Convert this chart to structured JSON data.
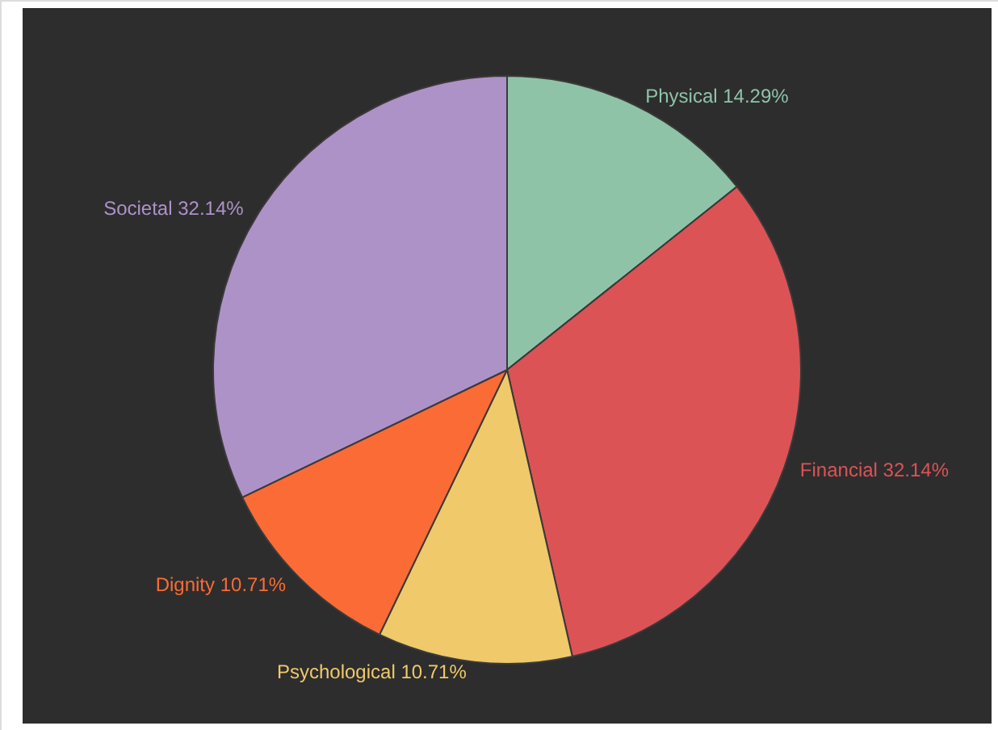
{
  "chart_data": {
    "type": "pie",
    "categories": [
      "Physical",
      "Financial",
      "Psychological",
      "Dignity",
      "Societal"
    ],
    "values": [
      14.29,
      32.14,
      10.71,
      10.71,
      32.14
    ],
    "colors": [
      "#8fc3a8",
      "#dc5356",
      "#efc96a",
      "#fb6b35",
      "#ad92c8"
    ],
    "value_labels": [
      "14.29%",
      "32.14%",
      "10.71%",
      "10.71%",
      "32.14%"
    ]
  }
}
